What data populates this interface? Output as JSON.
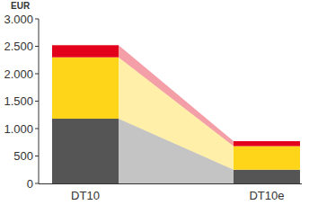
{
  "chart_data": {
    "type": "bar",
    "stacked": true,
    "y_label": "EUR",
    "categories": [
      "DT10",
      "DT10e"
    ],
    "series": [
      {
        "color": "#555555",
        "values": [
          1180,
          250
        ]
      },
      {
        "color": "#ffd51a",
        "values": [
          1120,
          430
        ]
      },
      {
        "color": "#e2001a",
        "values": [
          220,
          90
        ]
      }
    ],
    "ylim": [
      0,
      3000
    ],
    "yticks": [
      0,
      500,
      {
        "value": 1000,
        "label": "1.000"
      },
      {
        "value": 1500,
        "label": "1.500"
      },
      {
        "value": 2000,
        "label": "2.000"
      },
      {
        "value": 2500,
        "label": "2.500"
      },
      {
        "value": 3000,
        "label": "3.000"
      }
    ],
    "grid": false
  }
}
